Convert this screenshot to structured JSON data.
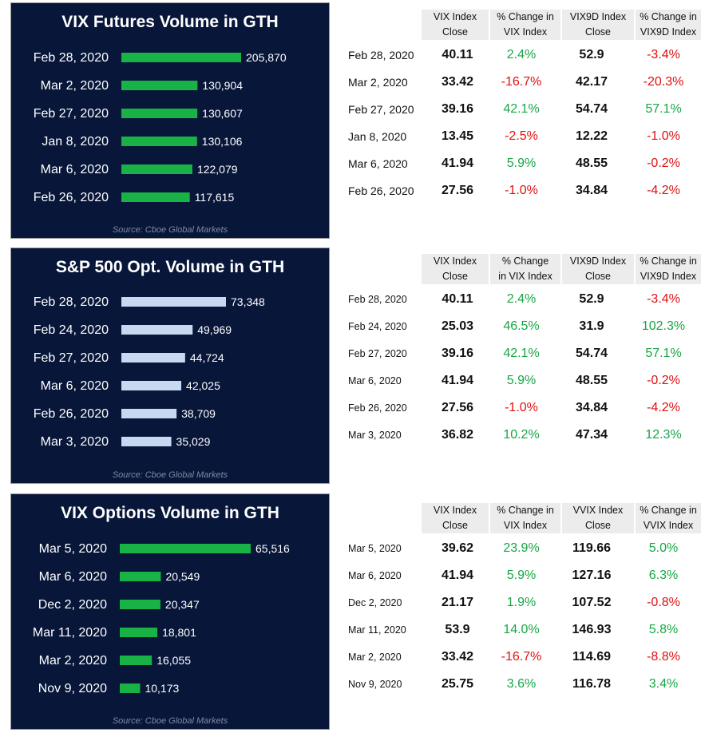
{
  "chart_data": [
    {
      "type": "bar",
      "title": "VIX Futures Volume in GTH",
      "categories": [
        "Feb 28, 2020",
        "Mar 2, 2020",
        "Feb 27, 2020",
        "Jan 8, 2020",
        "Mar 6, 2020",
        "Feb 26, 2020"
      ],
      "values": [
        205870,
        130904,
        130607,
        130106,
        122079,
        117615
      ],
      "value_labels": [
        "205,870",
        "130,904",
        "130,607",
        "130,106",
        "122,079",
        "117,615"
      ],
      "source": "Source: Cboe Global Markets",
      "bar_color": "#18b246",
      "xmax": 205870
    },
    {
      "type": "bar",
      "title": "S&P 500 Opt. Volume in GTH",
      "categories": [
        "Feb 28, 2020",
        "Feb 24, 2020",
        "Feb 27, 2020",
        "Mar 6, 2020",
        "Feb 26, 2020",
        "Mar 3, 2020"
      ],
      "values": [
        73348,
        49969,
        44724,
        42025,
        38709,
        35029
      ],
      "value_labels": [
        "73,348",
        "49,969",
        "44,724",
        "42,025",
        "38,709",
        "35,029"
      ],
      "source": "Source: Cboe Global Markets",
      "bar_color": "#c6d9f1",
      "xmax": 73348
    },
    {
      "type": "bar",
      "title": "VIX Options Volume in GTH",
      "categories": [
        "Mar 5, 2020",
        "Mar 6, 2020",
        "Dec 2, 2020",
        "Mar 11, 2020",
        "Mar 2, 2020",
        "Nov 9, 2020"
      ],
      "values": [
        65516,
        20549,
        20347,
        18801,
        16055,
        10173
      ],
      "value_labels": [
        "65,516",
        "20,549",
        "20,347",
        "18,801",
        "16,055",
        "10,173"
      ],
      "source": "Source: Cboe Global Markets",
      "bar_color": "#18b246",
      "xmax": 65516
    },
    {
      "type": "table",
      "headers": [
        [
          "VIX Index",
          "Close"
        ],
        [
          "% Change in",
          "VIX Index"
        ],
        [
          "VIX9D Index",
          "Close"
        ],
        [
          "% Change in",
          "VIX9D Index"
        ]
      ],
      "small_dates": false,
      "rows": [
        {
          "date": "Feb 28, 2020",
          "v1": "40.11",
          "p1": "2.4%",
          "v2": "52.9",
          "p2": "-3.4%"
        },
        {
          "date": "Mar 2, 2020",
          "v1": "33.42",
          "p1": "-16.7%",
          "v2": "42.17",
          "p2": "-20.3%"
        },
        {
          "date": "Feb 27, 2020",
          "v1": "39.16",
          "p1": "42.1%",
          "v2": "54.74",
          "p2": "57.1%"
        },
        {
          "date": "Jan 8, 2020",
          "v1": "13.45",
          "p1": "-2.5%",
          "v2": "12.22",
          "p2": "-1.0%"
        },
        {
          "date": "Mar 6, 2020",
          "v1": "41.94",
          "p1": "5.9%",
          "v2": "48.55",
          "p2": "-0.2%"
        },
        {
          "date": "Feb 26, 2020",
          "v1": "27.56",
          "p1": "-1.0%",
          "v2": "34.84",
          "p2": "-4.2%"
        }
      ]
    },
    {
      "type": "table",
      "headers": [
        [
          "VIX Index",
          "Close"
        ],
        [
          "% Change",
          "in VIX Index"
        ],
        [
          "VIX9D Index",
          "Close"
        ],
        [
          "% Change in",
          "VIX9D Index"
        ]
      ],
      "small_dates": true,
      "rows": [
        {
          "date": "Feb 28, 2020",
          "v1": "40.11",
          "p1": "2.4%",
          "v2": "52.9",
          "p2": "-3.4%"
        },
        {
          "date": "Feb 24, 2020",
          "v1": "25.03",
          "p1": "46.5%",
          "v2": "31.9",
          "p2": "102.3%"
        },
        {
          "date": "Feb 27, 2020",
          "v1": "39.16",
          "p1": "42.1%",
          "v2": "54.74",
          "p2": "57.1%"
        },
        {
          "date": "Mar 6, 2020",
          "v1": "41.94",
          "p1": "5.9%",
          "v2": "48.55",
          "p2": "-0.2%"
        },
        {
          "date": "Feb 26, 2020",
          "v1": "27.56",
          "p1": "-1.0%",
          "v2": "34.84",
          "p2": "-4.2%"
        },
        {
          "date": "Mar 3, 2020",
          "v1": "36.82",
          "p1": "10.2%",
          "v2": "47.34",
          "p2": "12.3%"
        }
      ]
    },
    {
      "type": "table",
      "headers": [
        [
          "VIX Index",
          "Close"
        ],
        [
          "% Change in",
          "VIX Index"
        ],
        [
          "VVIX Index",
          "Close"
        ],
        [
          "% Change in",
          "VVIX Index"
        ]
      ],
      "small_dates": true,
      "rows": [
        {
          "date": "Mar 5, 2020",
          "v1": "39.62",
          "p1": "23.9%",
          "v2": "119.66",
          "p2": "5.0%"
        },
        {
          "date": "Mar 6, 2020",
          "v1": "41.94",
          "p1": "5.9%",
          "v2": "127.16",
          "p2": "6.3%"
        },
        {
          "date": "Dec 2, 2020",
          "v1": "21.17",
          "p1": "1.9%",
          "v2": "107.52",
          "p2": "-0.8%"
        },
        {
          "date": "Mar 11, 2020",
          "v1": "53.9",
          "p1": "14.0%",
          "v2": "146.93",
          "p2": "5.8%"
        },
        {
          "date": "Mar 2, 2020",
          "v1": "33.42",
          "p1": "-16.7%",
          "v2": "114.69",
          "p2": "-8.8%"
        },
        {
          "date": "Nov 9, 2020",
          "v1": "25.75",
          "p1": "3.6%",
          "v2": "116.78",
          "p2": "3.4%"
        }
      ]
    }
  ],
  "colors": {
    "panel_bg": "#071639",
    "positive": "#17a744",
    "negative": "#e01010"
  }
}
